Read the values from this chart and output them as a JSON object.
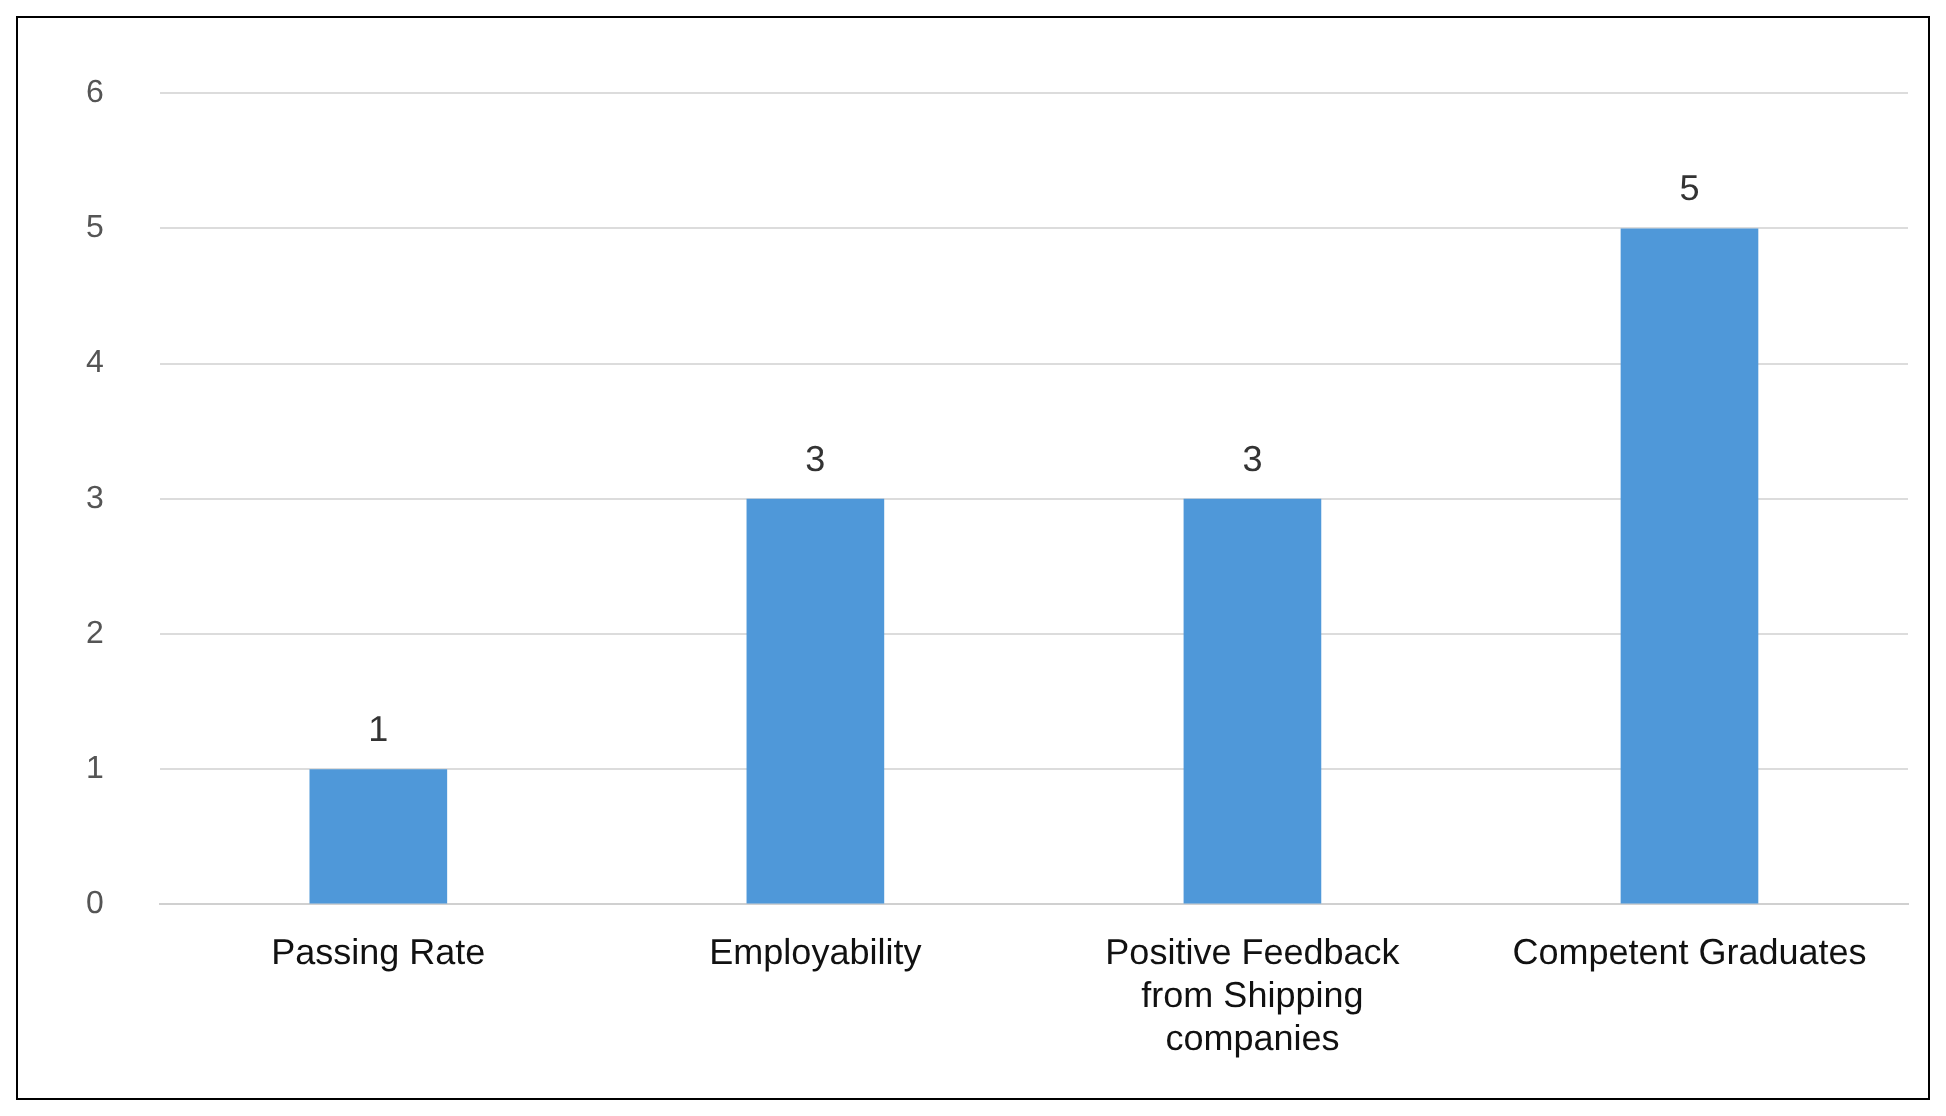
{
  "chart_data": {
    "type": "bar",
    "categories": [
      "Passing Rate",
      "Employability",
      "Positive Feedback from Shipping companies",
      "Competent Graduates"
    ],
    "values": [
      1,
      3,
      3,
      5
    ],
    "color": "#4f98d9",
    "ylim": [
      0,
      6
    ],
    "yticks": [
      0,
      1,
      2,
      3,
      4,
      5,
      6
    ],
    "grid": "y",
    "data_labels": true
  }
}
